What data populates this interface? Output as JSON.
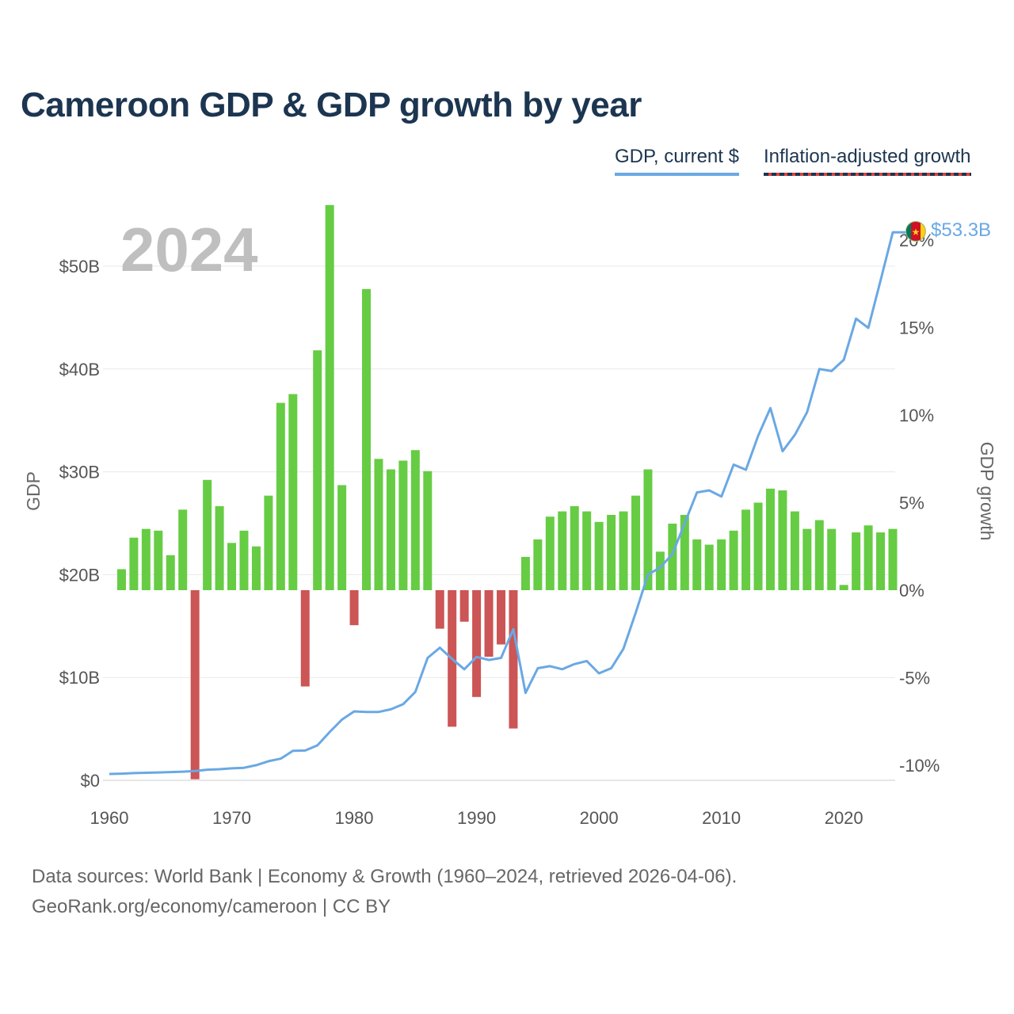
{
  "title": "Cameroon GDP & GDP growth by year",
  "legend": {
    "gdp": "GDP, current $",
    "growth": "Inflation-adjusted growth"
  },
  "colors": {
    "line": "#6aa8e4",
    "positive": "#66cc44",
    "negative": "#cc5555",
    "title": "#1c3550"
  },
  "footer": {
    "line1": "Data sources: World Bank | Economy & Growth (1960–2024, retrieved 2026-04-06).",
    "line2": "GeoRank.org/economy/cameroon | CC BY"
  },
  "chart_data": {
    "type": "bar+line",
    "year_label": "2024",
    "end_label": "$53.3B",
    "left_axis": {
      "title": "GDP",
      "ticks": [
        "$0",
        "$10B",
        "$20B",
        "$30B",
        "$40B",
        "$50B"
      ],
      "range": [
        0,
        50
      ]
    },
    "right_axis": {
      "title": "GDP growth",
      "ticks": [
        "-10%",
        "-5%",
        "0%",
        "5%",
        "10%",
        "15%",
        "20%"
      ],
      "range": [
        -10,
        20
      ]
    },
    "x_axis": {
      "ticks": [
        "1960",
        "1970",
        "1980",
        "1990",
        "2000",
        "2010",
        "2020"
      ],
      "range": [
        1960,
        2024
      ]
    },
    "years": [
      1960,
      1961,
      1962,
      1963,
      1964,
      1965,
      1966,
      1967,
      1968,
      1969,
      1970,
      1971,
      1972,
      1973,
      1974,
      1975,
      1976,
      1977,
      1978,
      1979,
      1980,
      1981,
      1982,
      1983,
      1984,
      1985,
      1986,
      1987,
      1988,
      1989,
      1990,
      1991,
      1992,
      1993,
      1994,
      1995,
      1996,
      1997,
      1998,
      1999,
      2000,
      2001,
      2002,
      2003,
      2004,
      2005,
      2006,
      2007,
      2008,
      2009,
      2010,
      2011,
      2012,
      2013,
      2014,
      2015,
      2016,
      2017,
      2018,
      2019,
      2020,
      2021,
      2022,
      2023,
      2024
    ],
    "gdp_billions": [
      0.62,
      0.65,
      0.7,
      0.73,
      0.76,
      0.8,
      0.84,
      0.9,
      1.03,
      1.08,
      1.16,
      1.22,
      1.47,
      1.86,
      2.1,
      2.87,
      2.9,
      3.4,
      4.7,
      5.9,
      6.7,
      6.65,
      6.65,
      6.9,
      7.4,
      8.6,
      11.9,
      12.9,
      11.8,
      10.8,
      12.0,
      11.7,
      11.9,
      14.7,
      8.5,
      10.9,
      11.1,
      10.8,
      11.3,
      11.6,
      10.4,
      10.9,
      12.8,
      16.3,
      20.0,
      20.7,
      22.0,
      25.0,
      28.0,
      28.2,
      27.6,
      30.7,
      30.2,
      33.5,
      36.2,
      32.0,
      33.6,
      35.8,
      40.0,
      39.8,
      40.9,
      44.9,
      44.0,
      48.6,
      53.3
    ],
    "growth_pct": [
      null,
      1.2,
      3.0,
      3.5,
      3.4,
      2.0,
      4.6,
      -10.8,
      6.3,
      4.8,
      2.7,
      3.4,
      2.5,
      5.4,
      10.7,
      11.2,
      -5.5,
      13.7,
      22.0,
      6.0,
      -2.0,
      17.2,
      7.5,
      6.9,
      7.4,
      8.0,
      6.8,
      -2.2,
      -7.8,
      -1.8,
      -6.1,
      -3.8,
      -3.1,
      -7.9,
      1.9,
      2.9,
      4.2,
      4.5,
      4.8,
      4.5,
      3.9,
      4.3,
      4.5,
      5.4,
      6.9,
      2.2,
      3.8,
      4.3,
      2.9,
      2.6,
      2.9,
      3.4,
      4.6,
      5.0,
      5.8,
      5.7,
      4.5,
      3.5,
      4.0,
      3.5,
      0.3,
      3.3,
      3.7,
      3.3,
      3.5
    ]
  }
}
